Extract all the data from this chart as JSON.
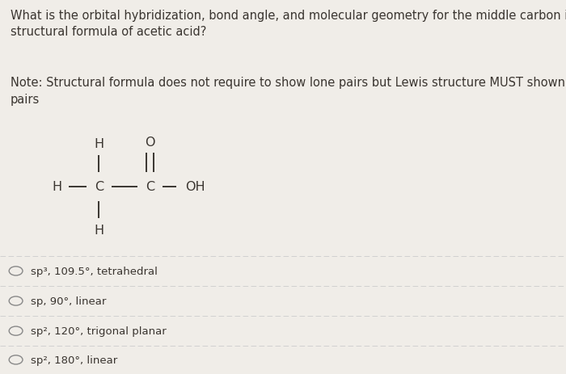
{
  "background_color": "#f0ede8",
  "title_text": "What is the orbital hybridization, bond angle, and molecular geometry for the middle carbon in the\nstructural formula of acetic acid?",
  "note_text": "Note: Structural formula does not require to show lone pairs but Lewis structure MUST shown lone\npairs",
  "title_fontsize": 10.5,
  "note_fontsize": 10.5,
  "options": [
    "sp³, 109.5°, tetrahedral",
    "sp, 90°, linear",
    "sp², 120°, trigonal planar",
    "sp², 180°, linear"
  ],
  "option_fontsize": 9.5,
  "formula_color": "#3a3530",
  "text_color": "#3a3530",
  "line_color": "#cccccc",
  "circle_color": "#888888"
}
